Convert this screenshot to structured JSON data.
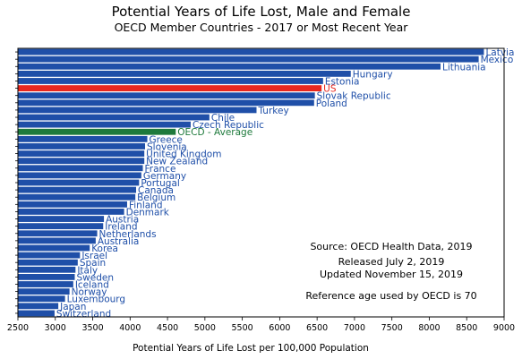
{
  "chart_data": {
    "type": "bar",
    "orientation": "horizontal",
    "title": "Potential Years of Life Lost, Male and Female",
    "subtitle": "OECD Member Countries - 2017 or Most Recent Year",
    "xlabel": "Potential Years of Life Lost per 100,000 Population",
    "xlim": [
      2500,
      9000
    ],
    "xticks": [
      "2500",
      "3000",
      "3500",
      "4000",
      "4500",
      "5000",
      "5500",
      "6000",
      "6500",
      "7000",
      "7500",
      "8000",
      "8500",
      "9000"
    ],
    "grid": false,
    "categories": [
      "Latvia",
      "Mexico",
      "Lithuania",
      "Hungary",
      "Estonia",
      "US",
      "Slovak Republic",
      "Poland",
      "Turkey",
      "Chile",
      "Czech Republic",
      "OECD - Average",
      "Greece",
      "Slovenia",
      "United Kingdom",
      "New Zealand",
      "France",
      "Germany",
      "Portugal",
      "Canada",
      "Belgium",
      "Finland",
      "Denmark",
      "Austria",
      "Ireland",
      "Netherlands",
      "Australia",
      "Korea",
      "Israel",
      "Spain",
      "Italy",
      "Sweden",
      "Iceland",
      "Norway",
      "Luxembourg",
      "Japan",
      "Switzerland"
    ],
    "values": [
      8730,
      8660,
      8150,
      6950,
      6580,
      6560,
      6470,
      6460,
      5690,
      5060,
      4810,
      4610,
      4230,
      4200,
      4190,
      4190,
      4170,
      4150,
      4120,
      4080,
      4070,
      3960,
      3920,
      3650,
      3640,
      3560,
      3540,
      3460,
      3330,
      3300,
      3270,
      3260,
      3240,
      3190,
      3130,
      3040,
      2990
    ],
    "highlight": {
      "US": "#e8281e",
      "OECD - Average": "#1e7a3c"
    },
    "bar_color": "#1f4fa8",
    "annotations": [
      "Source:  OECD Health Data, 2019",
      "Released July 2, 2019",
      "Updated November 15, 2019",
      "Reference age used by OECD is 70"
    ]
  }
}
